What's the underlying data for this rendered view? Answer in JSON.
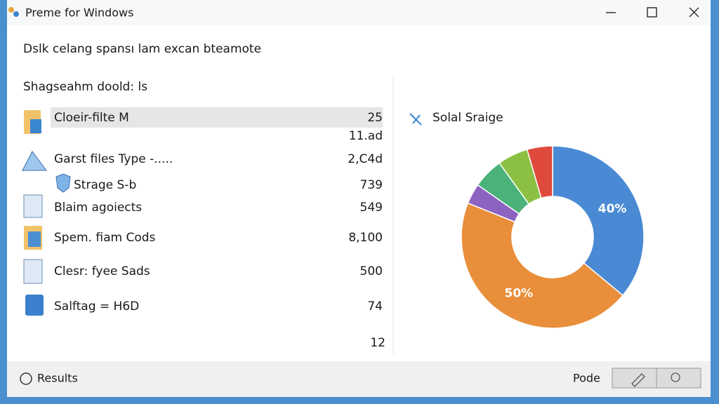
{
  "window": {
    "title": "Preme for Windows"
  },
  "header": {
    "title": "Dslk celang spansı lam excan bteamote"
  },
  "list": {
    "heading": "Shagseahm doold: ls",
    "rows": [
      {
        "label": "Cloeir-filte M",
        "value": "25",
        "sub": "11.ad"
      },
      {
        "label": "Garst files Type -.....",
        "value": "2,C4d"
      },
      {
        "label": "Strage S-b",
        "value": "739"
      },
      {
        "label": "Blaim agoiects",
        "value": "549"
      },
      {
        "label": "Spem. fiam Cods",
        "value": "8,100"
      },
      {
        "label": "Clesr: fyee Sads",
        "value": "500"
      },
      {
        "label": "Salftag = H6D",
        "value": "74"
      }
    ],
    "footer": "12"
  },
  "chart": {
    "type": "pie",
    "title": "Solal Sraige",
    "values": [
      40,
      50,
      4,
      6,
      6,
      5
    ],
    "value_labels": [
      "40%",
      "50%",
      null,
      null,
      null,
      null
    ],
    "colors": [
      "#4a8ad4",
      "#e98e3a",
      "#8c63c0",
      "#4bb27a",
      "#8cc043",
      "#df4a3c"
    ]
  },
  "footer": {
    "left": "Results",
    "right": "Pode"
  }
}
